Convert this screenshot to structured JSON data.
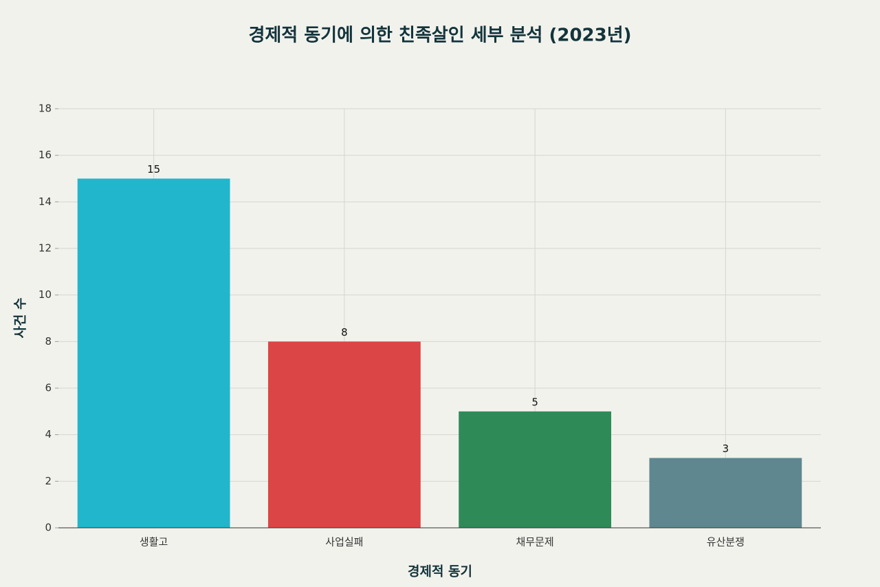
{
  "chart_data": {
    "type": "bar",
    "title": "경제적 동기에 의한 친족살인 세부 분석 (2023년)",
    "x_label": "경제적 동기",
    "y_label": "사건 수",
    "categories": [
      "생활고",
      "사업실패",
      "채무문제",
      "유산분쟁"
    ],
    "values": [
      15,
      8,
      5,
      3
    ],
    "colors": [
      "#21b6cc",
      "#db4545",
      "#2e8b57",
      "#5e8790"
    ],
    "ylim": [
      0,
      18
    ],
    "yticks": [
      0,
      2,
      4,
      6,
      8,
      10,
      12,
      14,
      16,
      18
    ],
    "grid": true
  }
}
